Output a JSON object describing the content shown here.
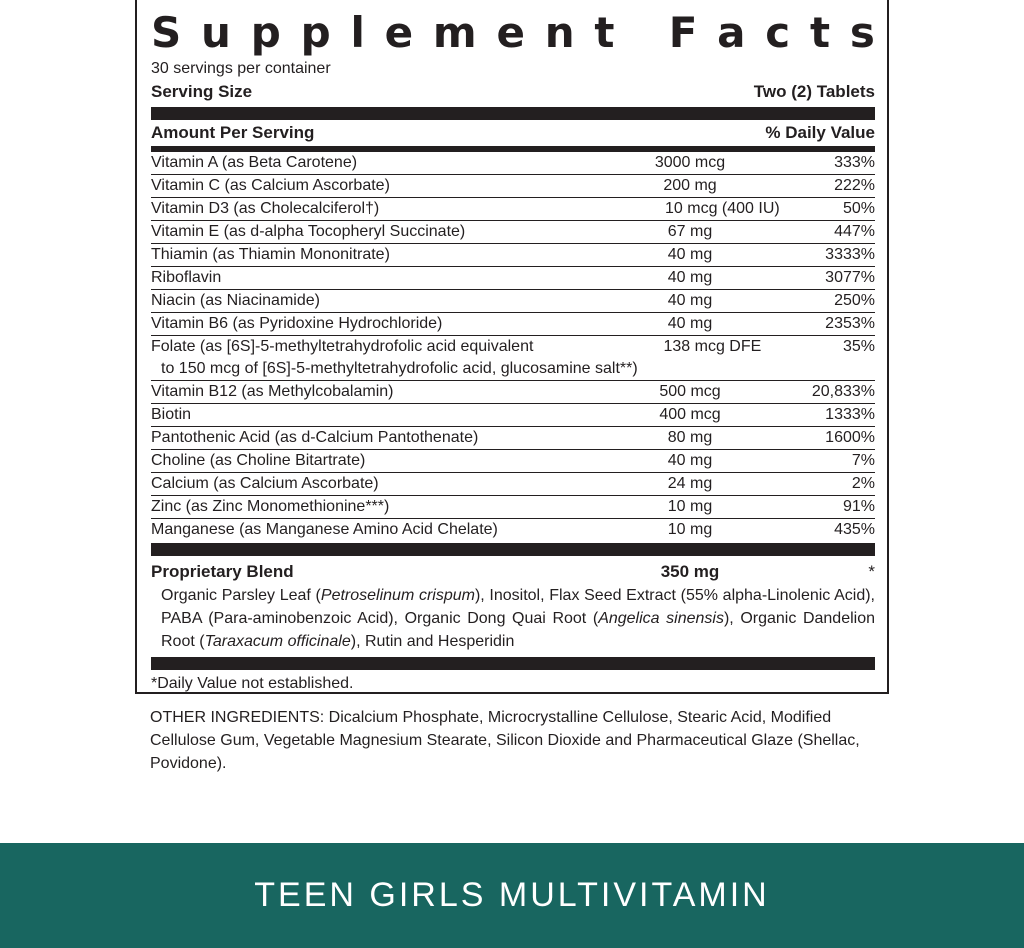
{
  "label": {
    "title": "Supplement Facts",
    "servings_per_container": "30 servings per container",
    "serving_size_label": "Serving Size",
    "serving_size_value": "Two (2) Tablets",
    "amount_per_serving": "Amount Per Serving",
    "daily_value_header": "% Daily Value",
    "nutrients": [
      {
        "name": "Vitamin A (as Beta Carotene)",
        "amount": "3000 mcg",
        "dv": "333%"
      },
      {
        "name": "Vitamin C (as Calcium Ascorbate)",
        "amount": "200 mg",
        "dv": "222%"
      },
      {
        "name": "Vitamin D3 (as Cholecalciferol†)",
        "amount": "10 mcg (400 IU)",
        "dv": "50%"
      },
      {
        "name": "Vitamin E (as d-alpha Tocopheryl Succinate)",
        "amount": "67 mg",
        "dv": "447%"
      },
      {
        "name": "Thiamin (as Thiamin Mononitrate)",
        "amount": "40 mg",
        "dv": "3333%"
      },
      {
        "name": "Riboflavin",
        "amount": "40 mg",
        "dv": "3077%"
      },
      {
        "name": "Niacin (as Niacinamide)",
        "amount": "40 mg",
        "dv": "250%"
      },
      {
        "name": "Vitamin B6 (as Pyridoxine Hydrochloride)",
        "amount": "40 mg",
        "dv": "2353%"
      },
      {
        "name": "Folate (as [6S]-5-methyltetrahydrofolic acid equivalent",
        "name_line2": "to 150 mcg of [6S]-5-methyltetrahydrofolic acid, glucosamine salt**)",
        "amount": "138 mcg DFE",
        "dv": "35%"
      },
      {
        "name": "Vitamin B12 (as Methylcobalamin)",
        "amount": "500 mcg",
        "dv": "20,833%"
      },
      {
        "name": "Biotin",
        "amount": "400 mcg",
        "dv": "1333%"
      },
      {
        "name": "Pantothenic Acid (as d-Calcium Pantothenate)",
        "amount": "80 mg",
        "dv": "1600%"
      },
      {
        "name": "Choline (as Choline Bitartrate)",
        "amount": "40 mg",
        "dv": "7%"
      },
      {
        "name": "Calcium (as Calcium Ascorbate)",
        "amount": "24 mg",
        "dv": "2%"
      },
      {
        "name": "Zinc (as Zinc Monomethionine***)",
        "amount": "10 mg",
        "dv": "91%"
      },
      {
        "name": "Manganese (as Manganese Amino Acid Chelate)",
        "amount": "10 mg",
        "dv": "435%"
      }
    ],
    "blend": {
      "name": "Proprietary Blend",
      "amount": "350 mg",
      "dv": "*",
      "ingredients_html": "Organic Parsley Leaf (<i>Petroselinum crispum</i>), Inositol, Flax Seed Extract (55% alpha-Linolenic Acid), PABA (Para-aminobenzoic Acid), Organic Dong Quai Root (<i>Angelica sinensis</i>), Organic Dandelion Root (<i>Taraxacum officinale</i>), Rutin and Hesperidin"
    },
    "footnote": "*Daily Value not established."
  },
  "other_ingredients": "OTHER INGREDIENTS: Dicalcium Phosphate, Microcrystalline Cellulose, Stearic Acid, Modified Cellulose Gum, Vegetable Magnesium Stearate, Silicon Dioxide and Pharmaceutical Glaze (Shellac, Povidone).",
  "banner": {
    "text": "TEEN GIRLS MULTIVITAMIN",
    "color": "#186660"
  }
}
